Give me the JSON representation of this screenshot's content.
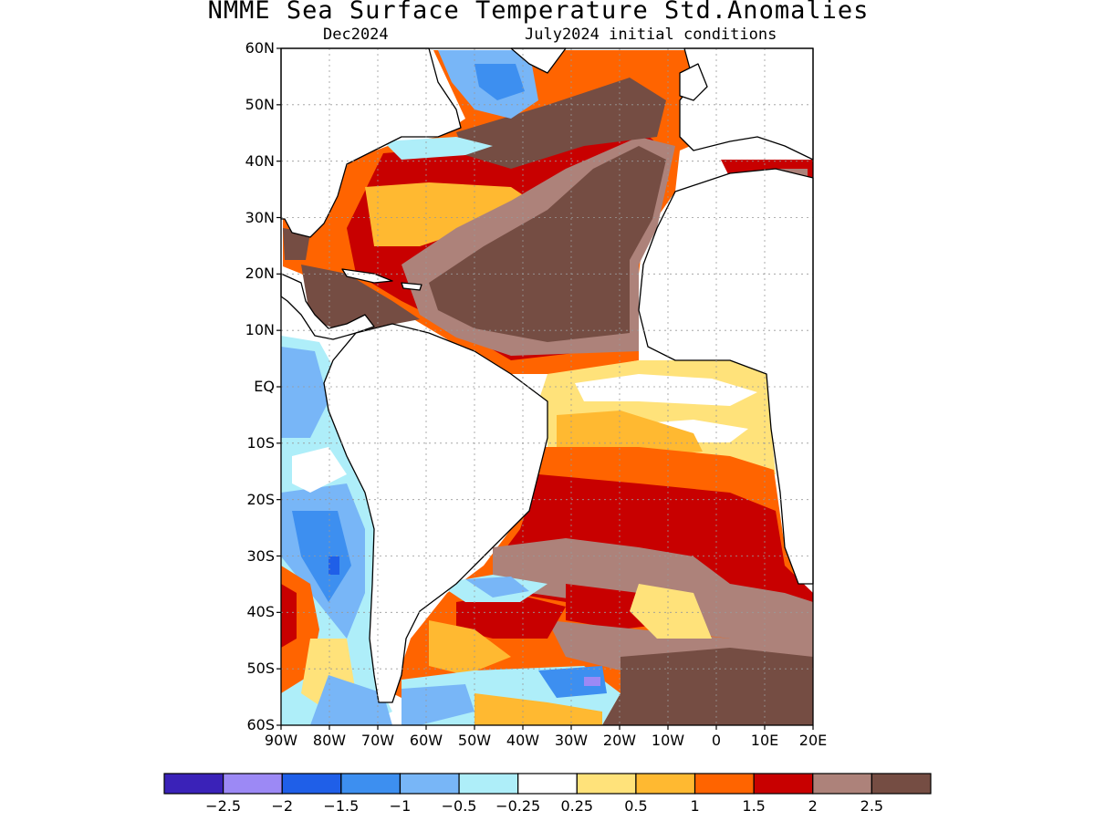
{
  "title": "NMME Sea Surface Temperature Std.Anomalies",
  "subtitle_left": "Dec2024",
  "subtitle_right": "July2024 initial conditions",
  "map": {
    "lon_range": [
      -90,
      20
    ],
    "lat_range": [
      -60,
      60
    ],
    "lat_labels": [
      {
        "lat": 60,
        "label": "60N"
      },
      {
        "lat": 50,
        "label": "50N"
      },
      {
        "lat": 40,
        "label": "40N"
      },
      {
        "lat": 30,
        "label": "30N"
      },
      {
        "lat": 20,
        "label": "20N"
      },
      {
        "lat": 10,
        "label": "10N"
      },
      {
        "lat": 0,
        "label": "EQ"
      },
      {
        "lat": -10,
        "label": "10S"
      },
      {
        "lat": -20,
        "label": "20S"
      },
      {
        "lat": -30,
        "label": "30S"
      },
      {
        "lat": -40,
        "label": "40S"
      },
      {
        "lat": -50,
        "label": "50S"
      },
      {
        "lat": -60,
        "label": "60S"
      }
    ],
    "lon_labels": [
      {
        "lon": -90,
        "label": "90W"
      },
      {
        "lon": -80,
        "label": "80W"
      },
      {
        "lon": -70,
        "label": "70W"
      },
      {
        "lon": -60,
        "label": "60W"
      },
      {
        "lon": -50,
        "label": "50W"
      },
      {
        "lon": -40,
        "label": "40W"
      },
      {
        "lon": -30,
        "label": "30W"
      },
      {
        "lon": -20,
        "label": "20W"
      },
      {
        "lon": -10,
        "label": "10W"
      },
      {
        "lon": 0,
        "label": "0"
      },
      {
        "lon": 10,
        "label": "10E"
      },
      {
        "lon": 20,
        "label": "20E"
      }
    ],
    "grid": true
  },
  "colorbar": {
    "colors": [
      "#3a22b8",
      "#9c89f5",
      "#1f5fe8",
      "#3d8ff0",
      "#78b6f7",
      "#aeeef9",
      "#ffffff",
      "#ffe27a",
      "#ffb931",
      "#ff6400",
      "#c80000",
      "#ad827a",
      "#754d43"
    ],
    "labels": [
      "−2.5",
      "−2",
      "−1.5",
      "−1",
      "−0.5",
      "−0.25",
      "0.25",
      "0.5",
      "1",
      "1.5",
      "2",
      "2.5"
    ]
  }
}
